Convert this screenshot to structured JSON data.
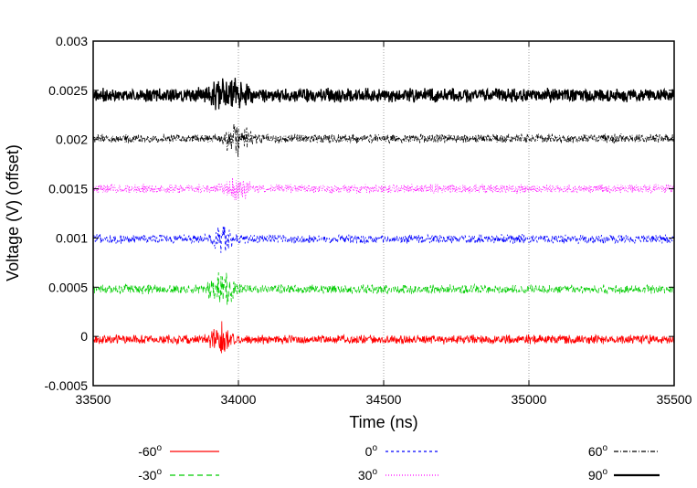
{
  "chart_data": {
    "type": "line",
    "title": "",
    "xlabel": "Time (ns)",
    "ylabel": "Voltage (V) (offset)",
    "xlim": [
      33500,
      35500
    ],
    "ylim": [
      -0.0005,
      0.003
    ],
    "x_ticks": [
      33500,
      34000,
      34500,
      35000,
      35500
    ],
    "x_tick_labels": [
      "33500",
      "34000",
      "34500",
      "35000",
      "35500"
    ],
    "y_ticks": [
      -0.0005,
      0,
      0.0005,
      0.001,
      0.0015,
      0.002,
      0.0025,
      0.003
    ],
    "y_tick_labels": [
      "-0.0005",
      "0",
      "0.0005",
      "0.001",
      "0.0015",
      "0.002",
      "0.0025",
      "0.003"
    ],
    "grid": "vertical dotted lines at interior x ticks",
    "legend_position": "bottom, below plot, three columns",
    "series": [
      {
        "name": "-60",
        "name_superscript": "o",
        "color": "#ff0000",
        "dash": "solid",
        "offset": -3e-05,
        "noise_amplitude": 4e-05,
        "event_time": 33935,
        "event_amplitude": 0.00014,
        "event_width": 30
      },
      {
        "name": "-30",
        "name_superscript": "o",
        "color": "#00cc00",
        "dash": "dashed",
        "offset": 0.00048,
        "noise_amplitude": 4e-05,
        "event_time": 33940,
        "event_amplitude": 0.00017,
        "event_width": 30
      },
      {
        "name": "0",
        "name_superscript": "o",
        "color": "#0000ff",
        "dash": "short-dashed",
        "offset": 0.00099,
        "noise_amplitude": 4e-05,
        "event_time": 33940,
        "event_amplitude": 0.00012,
        "event_width": 30
      },
      {
        "name": "30",
        "name_superscript": "o",
        "color": "#ff00ff",
        "dash": "dotted",
        "offset": 0.0015,
        "noise_amplitude": 4e-05,
        "event_time": 33995,
        "event_amplitude": 0.00012,
        "event_width": 30
      },
      {
        "name": "60",
        "name_superscript": "o",
        "color": "#000000",
        "dash": "dash-dot",
        "offset": 0.00201,
        "noise_amplitude": 4e-05,
        "event_time": 33995,
        "event_amplitude": 0.00017,
        "event_width": 30
      },
      {
        "name": "90",
        "name_superscript": "o",
        "color": "#000000",
        "dash": "solid-thick",
        "offset": 0.00245,
        "noise_amplitude": 6e-05,
        "event_time": 33960,
        "event_amplitude": 0.00013,
        "event_width": 60
      }
    ]
  }
}
